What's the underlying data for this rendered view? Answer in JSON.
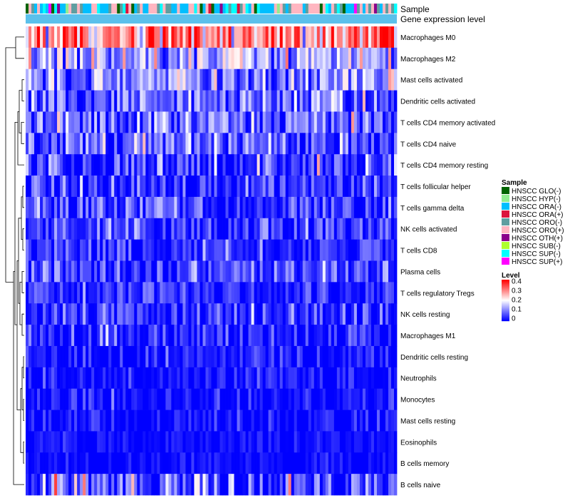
{
  "chart_data": {
    "type": "heatmap",
    "title": "",
    "annotation_tracks": [
      "Sample",
      "Gene expression level"
    ],
    "rows": [
      {
        "label": "Macrophages M0",
        "mean": 0.31,
        "sd": 0.08
      },
      {
        "label": "Macrophages M2",
        "mean": 0.16,
        "sd": 0.07
      },
      {
        "label": "Mast cells activated",
        "mean": 0.12,
        "sd": 0.06
      },
      {
        "label": "Dendritic cells activated",
        "mean": 0.11,
        "sd": 0.06
      },
      {
        "label": "T cells CD4 memory activated",
        "mean": 0.09,
        "sd": 0.06
      },
      {
        "label": "T cells CD4 naive",
        "mean": 0.09,
        "sd": 0.06
      },
      {
        "label": "T cells CD4 memory resting",
        "mean": 0.07,
        "sd": 0.06
      },
      {
        "label": "T cells follicular helper",
        "mean": 0.05,
        "sd": 0.05
      },
      {
        "label": "T cells gamma delta",
        "mean": 0.06,
        "sd": 0.05
      },
      {
        "label": "NK cells activated",
        "mean": 0.06,
        "sd": 0.05
      },
      {
        "label": "T cells CD8",
        "mean": 0.04,
        "sd": 0.04
      },
      {
        "label": "Plasma cells",
        "mean": 0.06,
        "sd": 0.05
      },
      {
        "label": "T cells regulatory  Tregs",
        "mean": 0.04,
        "sd": 0.04
      },
      {
        "label": "NK cells resting",
        "mean": 0.05,
        "sd": 0.05
      },
      {
        "label": "Macrophages M1",
        "mean": 0.03,
        "sd": 0.04
      },
      {
        "label": "Dendritic cells resting",
        "mean": 0.025,
        "sd": 0.035
      },
      {
        "label": "Neutrophils",
        "mean": 0.02,
        "sd": 0.035
      },
      {
        "label": "Monocytes",
        "mean": 0.015,
        "sd": 0.03
      },
      {
        "label": "Mast cells resting",
        "mean": 0.015,
        "sd": 0.03
      },
      {
        "label": "Eosinophils",
        "mean": 0.01,
        "sd": 0.02
      },
      {
        "label": "B cells memory",
        "mean": 0.01,
        "sd": 0.02
      },
      {
        "label": "B cells naive",
        "mean": 0.1,
        "sd": 0.09
      }
    ],
    "n_samples": 130,
    "sample_legend": {
      "title": "Sample",
      "entries": [
        {
          "label": "HNSCC GLO(-)",
          "color": "#006400"
        },
        {
          "label": "HNSCC HYP(-)",
          "color": "#90ee90"
        },
        {
          "label": "HNSCC ORA(-)",
          "color": "#00bfff"
        },
        {
          "label": "HNSCC ORA(+)",
          "color": "#dc143c"
        },
        {
          "label": "HNSCC ORO(-)",
          "color": "#5f9ea0"
        },
        {
          "label": "HNSCC ORO(+)",
          "color": "#ffb6c1"
        },
        {
          "label": "HNSCC OTH(+)",
          "color": "#8b008b"
        },
        {
          "label": "HNSCC SUB(-)",
          "color": "#adff2f"
        },
        {
          "label": "HNSCC SUP(-)",
          "color": "#00ffff"
        },
        {
          "label": "HNSCC SUP(+)",
          "color": "#ff00ff"
        }
      ]
    },
    "sample_weights": [
      2,
      1,
      14,
      1,
      7,
      12,
      1,
      1,
      6,
      2
    ],
    "level_legend": {
      "title": "Level",
      "ticks": [
        "0.4",
        "0.3",
        "0.2",
        "0.1",
        "0"
      ],
      "range": [
        0,
        0.4
      ],
      "colors": {
        "low": "#0000ff",
        "mid": "#ffffff",
        "high": "#ff0000",
        "mid_value": 0.2
      }
    },
    "gene_expression_track_color": "#5bc0eb"
  }
}
